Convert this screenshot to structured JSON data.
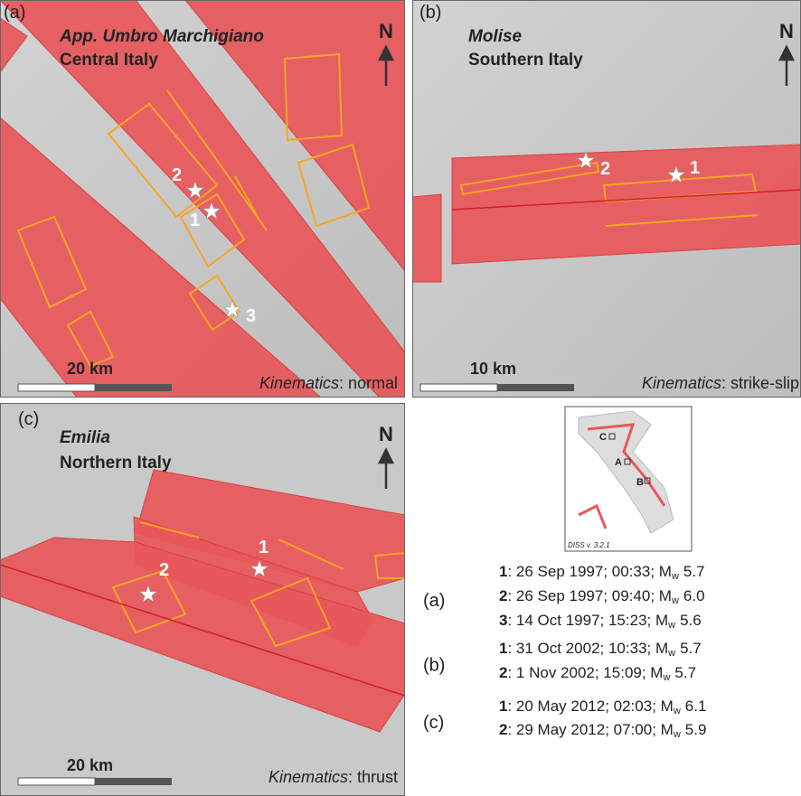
{
  "panels": [
    {
      "label": "(a)",
      "title": "App. Umbro Marchigiano",
      "subtitle": "Central Italy",
      "north": "N",
      "scale": "20 km",
      "kinematics_label": "Kinematics",
      "kinematics_value": ": normal",
      "events": [
        "1",
        "2",
        "3"
      ]
    },
    {
      "label": "(b)",
      "title": "Molise",
      "subtitle": "Southern Italy",
      "north": "N",
      "scale": "10 km",
      "kinematics_label": "Kinematics",
      "kinematics_value": ": strike-slip",
      "events": [
        "1",
        "2"
      ]
    },
    {
      "label": "(c)",
      "title": "Emilia",
      "subtitle": "Northern Italy",
      "north": "N",
      "scale": "20 km",
      "kinematics_label": "Kinematics",
      "kinematics_value": ": thrust",
      "events": [
        "1",
        "2"
      ]
    }
  ],
  "inset": {
    "labels": [
      "C",
      "A",
      "B"
    ],
    "version": "DISS v. 3.2.1"
  },
  "legend": [
    {
      "panel": "(a)",
      "events": [
        {
          "num": "1",
          "text": ": 26 Sep 1997; 00:33; M",
          "sub": "w",
          "mag": "5.7"
        },
        {
          "num": "2",
          "text": ": 26 Sep 1997; 09:40; M",
          "sub": "w",
          "mag": "6.0"
        },
        {
          "num": "3",
          "text": ": 14 Oct 1997; 15:23; M",
          "sub": "w",
          "mag": "5.6"
        }
      ]
    },
    {
      "panel": "(b)",
      "events": [
        {
          "num": "1",
          "text": ": 31 Oct 2002; 10:33; M",
          "sub": "w",
          "mag": "5.7"
        },
        {
          "num": "2",
          "text": ": 1 Nov 2002; 15:09; M",
          "sub": "w",
          "mag": "5.7"
        }
      ]
    },
    {
      "panel": "(c)",
      "events": [
        {
          "num": "1",
          "text": ": 20 May 2012; 02:03; M",
          "sub": "w",
          "mag": "6.1"
        },
        {
          "num": "2",
          "text": ": 29 May 2012; 07:00; M",
          "sub": "w",
          "mag": "5.9"
        }
      ]
    }
  ]
}
